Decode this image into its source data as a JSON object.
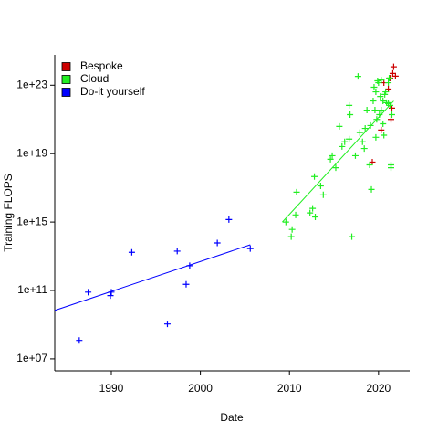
{
  "chart_data": {
    "type": "scatter",
    "x_label": "Date",
    "y_label": "Training FLOPS",
    "log_y": true,
    "legend": "top-left",
    "xlim": [
      1983.65,
      2023.5
    ],
    "xticks": [
      1990,
      2000,
      2010,
      2020
    ],
    "ylim": [
      2000000.0,
      6e+24
    ],
    "yticks": [
      {
        "value": 10000000.0,
        "label": "1e+07"
      },
      {
        "value": 100000000000.0,
        "label": "1e+11"
      },
      {
        "value": 1000000000000000.0,
        "label": "1e+15"
      },
      {
        "value": 1e+19,
        "label": "1e+19"
      },
      {
        "value": 1e+23,
        "label": "1e+23"
      }
    ],
    "series": [
      {
        "name": "Bespoke",
        "color": "#cc0000",
        "x": [
          2019.3,
          2020.3,
          2021.3,
          2021.6,
          2021.7,
          2021.9,
          2021.4,
          2021.1,
          2021.5,
          2020.6
        ],
        "values": [
          3.2e+18,
          2.4e+20,
          2.6e+23,
          4.9e+23,
          1.2e+24,
          3.4e+23,
          1e+21,
          6e+22,
          4.6e+21,
          1.4e+23
        ]
      },
      {
        "name": "Cloud",
        "color": "#22ee22",
        "x": [
          2009.6,
          2010.3,
          2010.2,
          2010.8,
          2010.7,
          2012.3,
          2012.6,
          2012.9,
          2012.8,
          2013.5,
          2013.8,
          2014.6,
          2014.8,
          2015.2,
          2015.6,
          2015.9,
          2016.2,
          2016.7,
          2016.8,
          2016.7,
          2017.0,
          2017.4,
          2017.7,
          2017.9,
          2018.2,
          2018.4,
          2018.5,
          2018.7,
          2019.0,
          2019.1,
          2019.2,
          2019.4,
          2019.5,
          2019.7,
          2019.9,
          2020.0,
          2019.8,
          2020.1,
          2020.3,
          2020.5,
          2020.7,
          2020.9,
          2021.1,
          2021.3,
          2021.4,
          2021.4,
          2021.5,
          2021.1,
          2020.8,
          2021.2,
          2019.6,
          2020.2,
          2019.7,
          2020.6,
          2020.3,
          2020.5
        ],
        "values": [
          1000000000000000.0,
          370000000000000.0,
          140000000000000.0,
          5.6e+16,
          2600000000000000.0,
          3400000000000000.0,
          6300000000000000.0,
          2000000000000000.0,
          4.6e+17,
          1.3e+17,
          3.9e+16,
          4.7e+18,
          7.6e+18,
          1.5e+18,
          3.9e+20,
          2.6e+19,
          4.9e+19,
          6.6e+21,
          1.9e+21,
          7.1e+19,
          140000000000000.0,
          7.6e+18,
          3.3e+23,
          1.7e+20,
          4.9e+19,
          2e+19,
          3e+20,
          3.5e+21,
          2.2e+18,
          4.4e+20,
          8.1e+16,
          1.2e+22,
          7.6e+22,
          4.1e+22,
          1.8e+23,
          1.4e+23,
          1e+21,
          1.9e+21,
          3.5e+21,
          1.2e+22,
          2.9e+22,
          9.6e+21,
          8.4e+21,
          6.6e+21,
          2.2e+18,
          1.5e+18,
          1.9e+21,
          1.4e+23,
          4.1e+22,
          2.6e+23,
          3.5e+21,
          2.2e+22,
          9e+19,
          1.2e+20,
          2e+23,
          5.6e+20
        ],
        "trend": {
          "x": [
            2009.2,
            2021.7
          ],
          "values": [
            1000000000000000.0,
            1.2e+22
          ]
        }
      },
      {
        "name": "Do-it yourself",
        "color": "#0000ff",
        "x": [
          1986.4,
          1987.4,
          1990.0,
          1989.9,
          1992.3,
          1996.3,
          1997.4,
          1998.8,
          1998.4,
          2001.9,
          2003.2,
          2005.6
        ],
        "values": [
          120000000.0,
          80000000000.0,
          80000000000.0,
          50000000000.0,
          17000000000000.0,
          1100000000.0,
          20000000000000.0,
          2800000000000.0,
          230000000000.0,
          60000000000000.0,
          1400000000000000.0,
          28000000000000.0
        ],
        "trend": {
          "x": [
            1983.65,
            2005.6
          ],
          "values": [
            6800000000.0,
            47000000000000.0
          ]
        }
      }
    ]
  }
}
